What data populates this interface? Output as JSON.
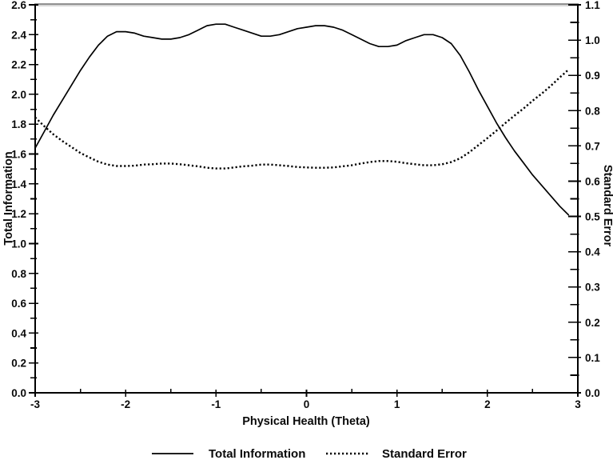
{
  "figure": {
    "background": "#ffffff",
    "frame_top_color": "#8a8a8a",
    "frame_top_shadow_color": "#cccccc",
    "axis_color": "#000000",
    "line_color": "#000000"
  },
  "chart_data": {
    "type": "line",
    "title": "",
    "xlabel": "Physical Health (Theta)",
    "x_range": [
      -3,
      3
    ],
    "x_major_tick_values": [
      -3,
      -2,
      -1,
      0,
      1,
      2,
      3
    ],
    "x_major_tick_labels": [
      "-3",
      "-2",
      "-1",
      "0",
      "1",
      "2",
      "3"
    ],
    "x_minor_tick_values": [
      -2.5,
      -1.5,
      -0.5,
      0.5,
      1.5,
      2.5
    ],
    "grid": "off",
    "axes": {
      "left": {
        "label": "Total Information",
        "range": [
          0,
          2.6
        ],
        "major_step": 0.2,
        "minor_step": 0.1,
        "tick_labels": [
          "0.0",
          "0.2",
          "0.4",
          "0.6",
          "0.8",
          "1.0",
          "1.2",
          "1.4",
          "1.6",
          "1.8",
          "2.0",
          "2.2",
          "2.4",
          "2.6"
        ]
      },
      "right": {
        "label": "Standard Error",
        "range": [
          0,
          1.1
        ],
        "major_step": 0.1,
        "minor_step": 0.05,
        "tick_labels": [
          "0.0",
          "0.1",
          "0.2",
          "0.3",
          "0.4",
          "0.5",
          "0.6",
          "0.7",
          "0.8",
          "0.9",
          "1.0",
          "1.1"
        ]
      }
    },
    "x": [
      -3.0,
      -2.9,
      -2.8,
      -2.7,
      -2.6,
      -2.5,
      -2.4,
      -2.3,
      -2.2,
      -2.1,
      -2.0,
      -1.9,
      -1.8,
      -1.7,
      -1.6,
      -1.5,
      -1.4,
      -1.3,
      -1.2,
      -1.1,
      -1.0,
      -0.9,
      -0.8,
      -0.7,
      -0.6,
      -0.5,
      -0.4,
      -0.3,
      -0.2,
      -0.1,
      0.0,
      0.1,
      0.2,
      0.3,
      0.4,
      0.5,
      0.6,
      0.7,
      0.8,
      0.9,
      1.0,
      1.1,
      1.2,
      1.3,
      1.4,
      1.5,
      1.6,
      1.7,
      1.8,
      1.9,
      2.0,
      2.1,
      2.2,
      2.3,
      2.4,
      2.5,
      2.6,
      2.7,
      2.8,
      2.9
    ],
    "series": [
      {
        "name": "Total Information",
        "axis": "left",
        "style": "solid",
        "values": [
          1.64,
          1.75,
          1.86,
          1.96,
          2.06,
          2.16,
          2.25,
          2.33,
          2.39,
          2.42,
          2.42,
          2.41,
          2.39,
          2.38,
          2.37,
          2.37,
          2.38,
          2.4,
          2.43,
          2.46,
          2.47,
          2.47,
          2.45,
          2.43,
          2.41,
          2.39,
          2.39,
          2.4,
          2.42,
          2.44,
          2.45,
          2.46,
          2.46,
          2.45,
          2.43,
          2.4,
          2.37,
          2.34,
          2.32,
          2.32,
          2.33,
          2.36,
          2.38,
          2.4,
          2.4,
          2.38,
          2.34,
          2.26,
          2.15,
          2.03,
          1.92,
          1.81,
          1.71,
          1.62,
          1.54,
          1.46,
          1.39,
          1.32,
          1.25,
          1.19
        ]
      },
      {
        "name": "Standard Error",
        "axis": "right",
        "style": "dotted",
        "values": [
          0.781,
          0.756,
          0.733,
          0.714,
          0.697,
          0.68,
          0.667,
          0.655,
          0.647,
          0.643,
          0.643,
          0.644,
          0.647,
          0.648,
          0.65,
          0.65,
          0.648,
          0.645,
          0.642,
          0.638,
          0.636,
          0.636,
          0.639,
          0.642,
          0.644,
          0.647,
          0.647,
          0.645,
          0.643,
          0.64,
          0.639,
          0.638,
          0.638,
          0.639,
          0.642,
          0.645,
          0.65,
          0.654,
          0.657,
          0.657,
          0.655,
          0.651,
          0.648,
          0.645,
          0.645,
          0.648,
          0.654,
          0.665,
          0.682,
          0.702,
          0.722,
          0.743,
          0.765,
          0.786,
          0.806,
          0.828,
          0.848,
          0.87,
          0.894,
          0.917
        ]
      }
    ],
    "legend": {
      "position": "bottom",
      "entries": [
        {
          "label": "Total Information",
          "style": "solid"
        },
        {
          "label": "Standard Error",
          "style": "dotted"
        }
      ]
    }
  }
}
